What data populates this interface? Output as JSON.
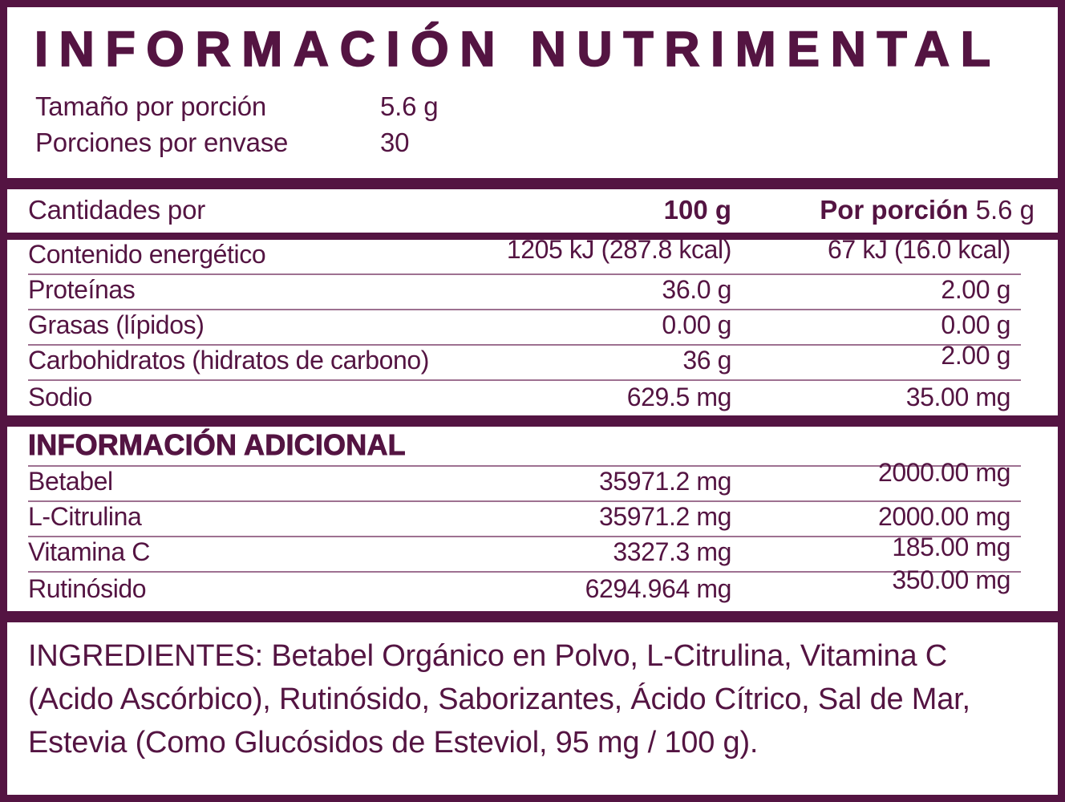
{
  "theme": {
    "primary_color": "#541442",
    "thin_line_color": "#9e7191",
    "background_color": "#ffffff"
  },
  "header": {
    "title": "INFORMACIÓN NUTRIMENTAL",
    "serving_size": {
      "label": "Tamaño por porción",
      "value": "5.6 g"
    },
    "servings_per_container": {
      "label": "Porciones por envase",
      "value": "30"
    }
  },
  "nutrition_table": {
    "header": {
      "label": "Cantidades por",
      "col_100g": "100 g",
      "col_portion_bold": "Por porción",
      "col_portion_value": "5.6 g"
    },
    "rows": [
      {
        "label": "Contenido energético",
        "per_100g": "1205 kJ (287.8 kcal)",
        "per_portion": "67 kJ (16.0 kcal)"
      },
      {
        "label": "Proteínas",
        "per_100g": "36.0 g",
        "per_portion": "2.00 g"
      },
      {
        "label": "Grasas (lípidos)",
        "per_100g": "0.00 g",
        "per_portion": "0.00 g"
      },
      {
        "label": "Carbohidratos (hidratos de carbono)",
        "per_100g": "36 g",
        "per_portion": "2.00 g"
      },
      {
        "label": "Sodio",
        "per_100g": "629.5 mg",
        "per_portion": "35.00 mg"
      }
    ]
  },
  "additional_info": {
    "title": "INFORMACIÓN ADICIONAL",
    "rows": [
      {
        "label": "Betabel",
        "per_100g": "35971.2 mg",
        "per_portion": "2000.00 mg"
      },
      {
        "label": "L-Citrulina",
        "per_100g": "35971.2 mg",
        "per_portion": "2000.00 mg"
      },
      {
        "label": "Vitamina C",
        "per_100g": "3327.3 mg",
        "per_portion": "185.00 mg"
      },
      {
        "label": "Rutinósido",
        "per_100g": "6294.964 mg",
        "per_portion": "350.00 mg"
      }
    ]
  },
  "ingredients": {
    "text": "INGREDIENTES: Betabel Orgánico en Polvo, L-Citrulina, Vitamina C (Acido Ascórbico), Rutinósido, Saborizantes, Ácido Cítrico, Sal de Mar, Estevia (Como Glucósidos de Esteviol, 95 mg / 100 g)."
  }
}
